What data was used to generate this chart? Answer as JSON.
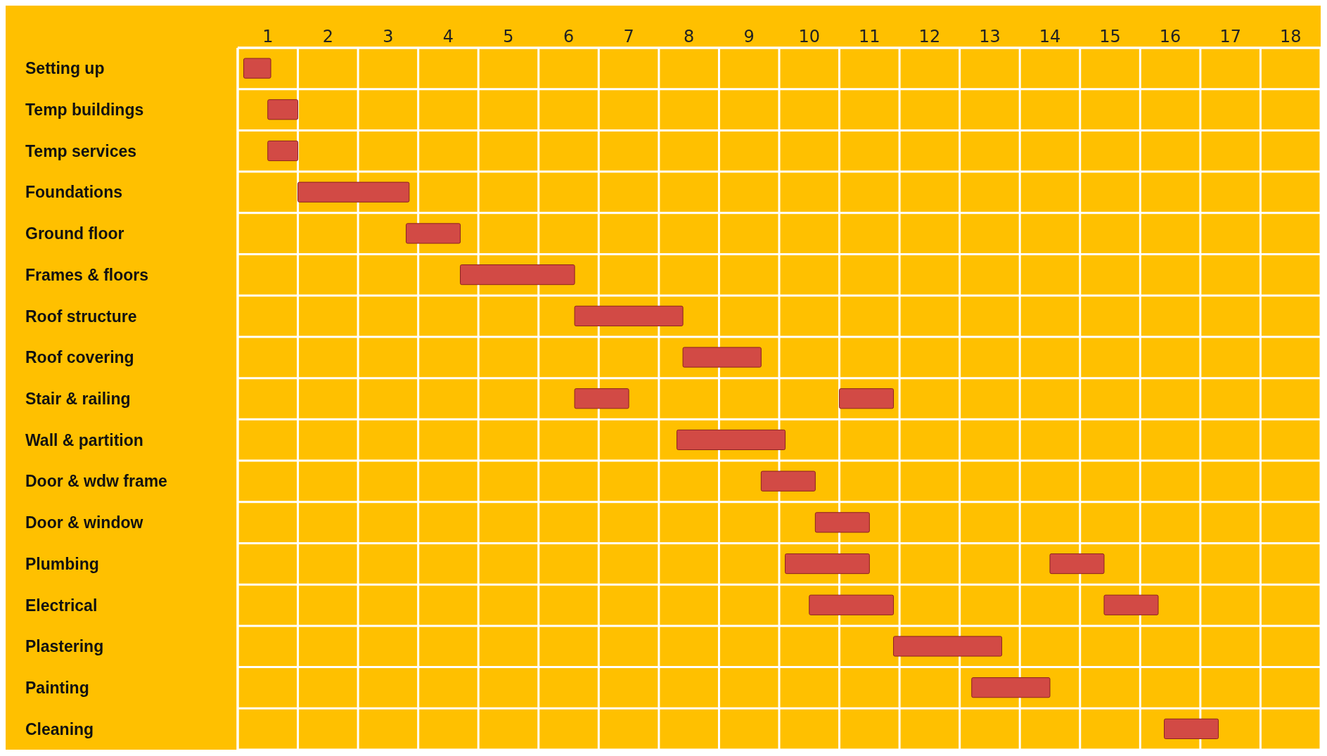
{
  "chart_data": {
    "type": "bar",
    "orientation": "horizontal",
    "grid": true,
    "legend": false,
    "categories": [
      "Setting up",
      "Temp buildings",
      "Temp services",
      "Foundations",
      "Ground floor",
      "Frames & floors",
      "Roof structure",
      "Roof covering",
      "Stair & railing",
      "Wall & partition",
      "Door & wdw frame",
      "Door & window",
      "Plumbing",
      "Electrical",
      "Plastering",
      "Painting",
      "Cleaning"
    ],
    "xlim": [
      0.5,
      18.5
    ],
    "xticks": [
      {
        "value": 0.5,
        "label": null
      },
      1,
      {
        "value": 1.5,
        "label": null
      },
      2,
      {
        "value": 2.5,
        "label": null
      },
      3,
      {
        "value": 3.5,
        "label": null
      },
      4,
      {
        "value": 4.5,
        "label": null
      },
      5,
      {
        "value": 5.5,
        "label": null
      },
      6,
      {
        "value": 6.5,
        "label": null
      },
      7,
      {
        "value": 7.5,
        "label": null
      },
      8,
      {
        "value": 8.5,
        "label": null
      },
      9,
      {
        "value": 9.5,
        "label": null
      },
      10,
      {
        "value": 10.5,
        "label": null
      },
      11,
      {
        "value": 11.5,
        "label": null
      },
      12,
      {
        "value": 12.5,
        "label": null
      },
      13,
      {
        "value": 13.5,
        "label": null
      },
      14,
      {
        "value": 14.5,
        "label": null
      },
      15,
      {
        "value": 15.5,
        "label": null
      },
      16,
      {
        "value": 16.5,
        "label": null
      },
      17,
      {
        "value": 17.5,
        "label": null
      },
      18,
      {
        "value": 18.5,
        "label": null
      }
    ],
    "series": [
      {
        "color": "#d24a45",
        "base": [
          0.6,
          1.0,
          1.0,
          1.5,
          3.3,
          4.2,
          6.1,
          7.9,
          6.1,
          7.8,
          9.2,
          10.1,
          9.6,
          10.0,
          11.4,
          12.7,
          15.9
        ],
        "values": [
          0.45,
          0.5,
          0.5,
          1.85,
          0.9,
          1.9,
          1.8,
          1.3,
          0.9,
          1.8,
          0.9,
          0.9,
          1.4,
          1.4,
          1.8,
          1.3,
          0.9
        ]
      },
      {
        "color": "#d24a45",
        "base": [
          null,
          null,
          null,
          null,
          null,
          null,
          null,
          null,
          10.5,
          null,
          null,
          null,
          14.0,
          14.9,
          null,
          null,
          null
        ],
        "values": [
          null,
          null,
          null,
          null,
          null,
          null,
          null,
          null,
          0.9,
          null,
          null,
          null,
          0.9,
          0.9,
          null,
          null,
          null
        ]
      }
    ]
  }
}
